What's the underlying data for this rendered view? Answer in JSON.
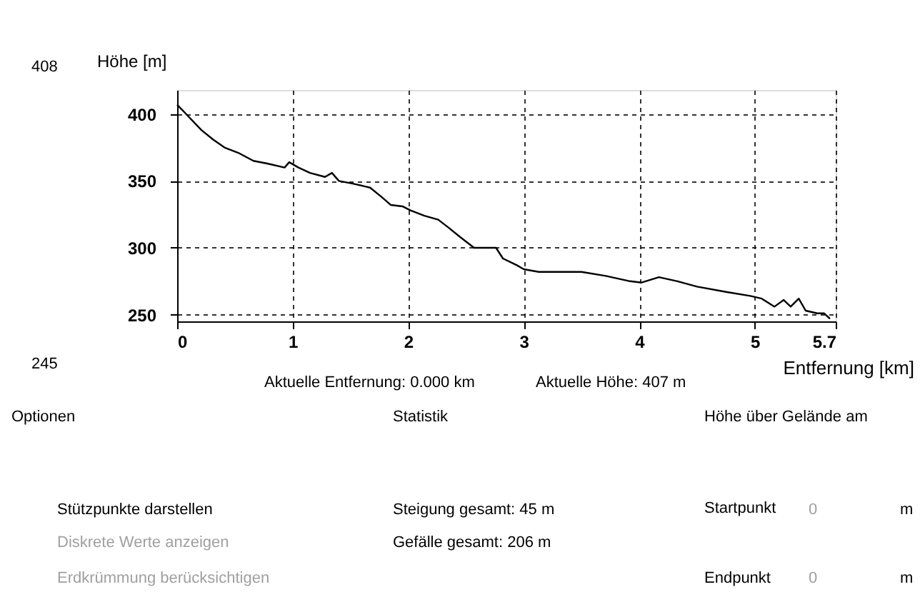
{
  "chart_data": {
    "type": "line",
    "ylabel": "Höhe [m]",
    "xlabel": "Entfernung [km]",
    "x": [
      0,
      0.1,
      0.21,
      0.31,
      0.41,
      0.53,
      0.66,
      0.78,
      0.93,
      0.97,
      1.05,
      1.15,
      1.28,
      1.34,
      1.4,
      1.52,
      1.67,
      1.77,
      1.85,
      1.95,
      2.02,
      2.14,
      2.26,
      2.35,
      2.45,
      2.57,
      2.76,
      2.82,
      2.94,
      3.0,
      3.13,
      3.5,
      3.71,
      3.92,
      4.02,
      4.17,
      4.33,
      4.5,
      4.75,
      4.96,
      5.06,
      5.17,
      5.25,
      5.31,
      5.38,
      5.44,
      5.54,
      5.6,
      5.65
    ],
    "series": [
      {
        "color": "#000000",
        "values": [
          407,
          398,
          388,
          381,
          375,
          371,
          365,
          363,
          360,
          364,
          360,
          356,
          353,
          356,
          350,
          348,
          345,
          338,
          332,
          331,
          328,
          324,
          321,
          315,
          308,
          300,
          300,
          292,
          287,
          284,
          282,
          282,
          279,
          275,
          274,
          278,
          275,
          271,
          267,
          264,
          262,
          256,
          261,
          256,
          262,
          253,
          251,
          251,
          247
        ]
      }
    ],
    "xlim": [
      0,
      5.7
    ],
    "xticks": [
      0,
      1,
      2,
      3,
      4,
      5,
      5.7
    ],
    "ylim": [
      245,
      418
    ],
    "yticks": [
      250,
      300,
      350,
      400
    ],
    "grid": true,
    "line_style": "solid",
    "legend": false,
    "annotations": [
      "408",
      "245",
      "Aktuelle Entfernung: 0.000 km",
      "Aktuelle Höhe: 407 m",
      "Optionen",
      "Stützpunkte darstellen",
      "Diskrete Werte anzeigen",
      "Erdkrümmung berücksichtigen",
      "Statistik",
      "Steigung gesamt: 45 m",
      "Gefälle gesamt: 206 m",
      "Höhe über Gelände am",
      "Startpunkt",
      "0",
      "m",
      "Endpunkt",
      "0",
      "m"
    ]
  }
}
